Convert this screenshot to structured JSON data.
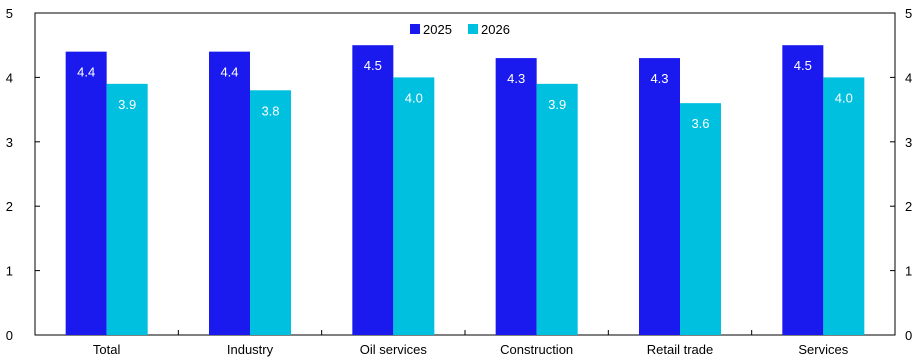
{
  "chart_data": {
    "type": "bar",
    "title": "",
    "xlabel": "",
    "ylabel": "",
    "categories": [
      "Total",
      "Industry",
      "Oil services",
      "Construction",
      "Retail trade",
      "Services"
    ],
    "series": [
      {
        "name": "2025",
        "color": "#1a1aef",
        "values": [
          4.4,
          4.4,
          4.5,
          4.3,
          4.3,
          4.5
        ],
        "labels": [
          "4.4",
          "4.4",
          "4.5",
          "4.3",
          "4.3",
          "4.5"
        ]
      },
      {
        "name": "2026",
        "color": "#00c0e0",
        "values": [
          3.9,
          3.8,
          4.0,
          3.9,
          3.6,
          4.0
        ],
        "labels": [
          "3.9",
          "3.8",
          "4.0",
          "3.9",
          "3.6",
          "4.0"
        ]
      }
    ],
    "ylim": [
      0,
      5
    ],
    "yticks": [
      "0",
      "1",
      "2",
      "3",
      "4",
      "5"
    ],
    "y_axis_right": true,
    "grid": false,
    "legend": "top-center"
  }
}
